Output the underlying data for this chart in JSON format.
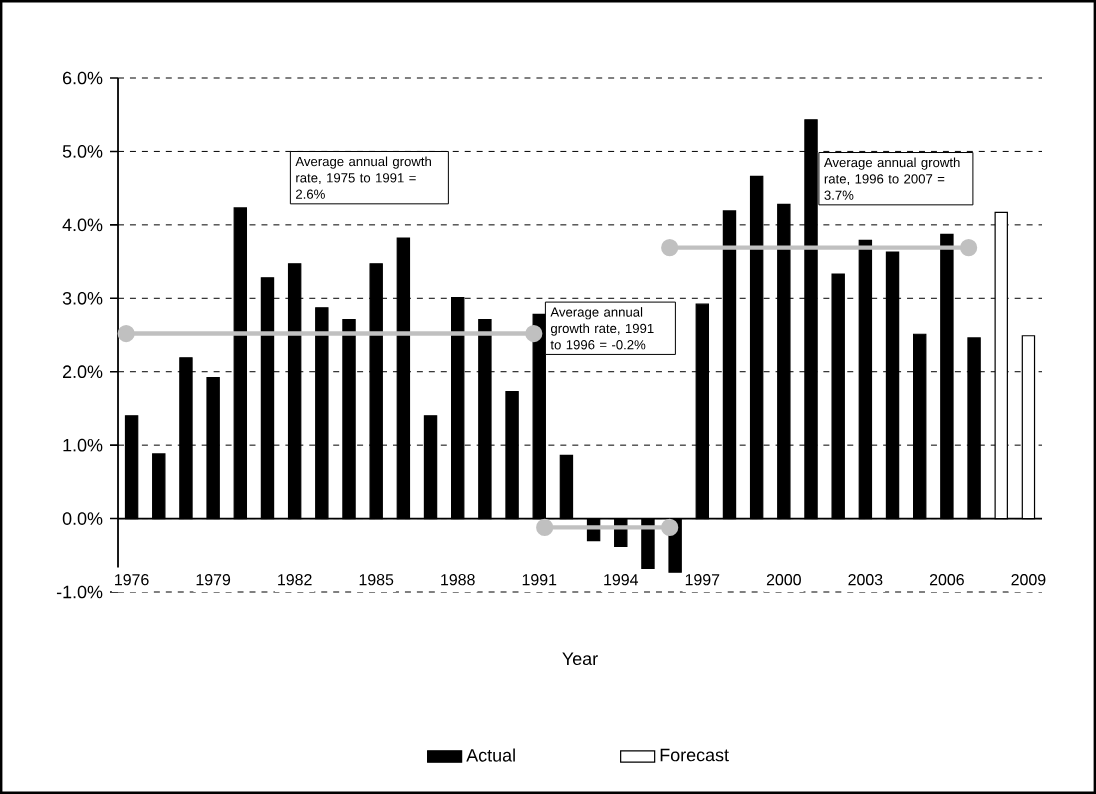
{
  "chart_data": {
    "type": "bar",
    "xlabel": "Year",
    "xlim": [
      1975.5,
      2009.5
    ],
    "xticks": [
      {
        "value": 1976,
        "label": "1976"
      },
      {
        "value": 1979,
        "label": "1979"
      },
      {
        "value": 1982,
        "label": "1982"
      },
      {
        "value": 1985,
        "label": "1985"
      },
      {
        "value": 1988,
        "label": "1988"
      },
      {
        "value": 1991,
        "label": "1991"
      },
      {
        "value": 1994,
        "label": "1994"
      },
      {
        "value": 1997,
        "label": "1997"
      },
      {
        "value": 2000,
        "label": "2000"
      },
      {
        "value": 2003,
        "label": "2003"
      },
      {
        "value": 2006,
        "label": "2006"
      },
      {
        "value": 2009,
        "label": "2009"
      }
    ],
    "ylim": [
      -1,
      6
    ],
    "yticks": [
      {
        "value": -1,
        "label": "-1.0%"
      },
      {
        "value": 0,
        "label": "0.0%"
      },
      {
        "value": 1,
        "label": "1.0%"
      },
      {
        "value": 2,
        "label": "2.0%"
      },
      {
        "value": 3,
        "label": "3.0%"
      },
      {
        "value": 4,
        "label": "4.0%"
      },
      {
        "value": 5,
        "label": "5.0%"
      },
      {
        "value": 6,
        "label": "6.0%"
      }
    ],
    "grid": "y",
    "legend": "bottom",
    "series": [
      {
        "name": "Actual",
        "color": "#000000",
        "x": [
          1976,
          1977,
          1978,
          1979,
          1980,
          1981,
          1982,
          1983,
          1984,
          1985,
          1986,
          1987,
          1988,
          1989,
          1990,
          1991,
          1992,
          1993,
          1994,
          1995,
          1996,
          1997,
          1998,
          1999,
          2000,
          2001,
          2002,
          2003,
          2004,
          2005,
          2006,
          2007
        ],
        "values": [
          1.4,
          0.88,
          2.19,
          1.92,
          4.23,
          3.28,
          3.47,
          2.87,
          2.71,
          3.47,
          3.82,
          1.4,
          3.01,
          2.71,
          1.73,
          2.78,
          0.86,
          -0.3,
          -0.38,
          -0.68,
          -0.73,
          2.92,
          4.19,
          4.66,
          4.28,
          5.43,
          3.33,
          3.79,
          3.63,
          2.51,
          3.87,
          2.46
        ]
      },
      {
        "name": "Forecast",
        "color": "#ffffff",
        "x": [
          2008,
          2009
        ],
        "values": [
          4.17,
          2.49
        ]
      },
      {
        "type": "line",
        "color": "#c0c0c0",
        "marker": "circle",
        "x": [
          1975.8,
          1990.8
        ],
        "values": [
          2.52,
          2.52
        ]
      },
      {
        "type": "line",
        "color": "#c0c0c0",
        "marker": "circle",
        "x": [
          1991.2,
          1995.8
        ],
        "values": [
          -0.12,
          -0.12
        ]
      },
      {
        "type": "line",
        "color": "#c0c0c0",
        "marker": "circle",
        "x": [
          1995.8,
          2006.8
        ],
        "values": [
          3.69,
          3.69
        ]
      }
    ],
    "annotations": [
      "Average annual growth rate, 1975 to 1991 = 2.6%",
      "Average annual growth rate, 1991 to 1996 = -0.2%",
      "Average annual growth rate, 1996 to 2007 = 3.7%"
    ]
  }
}
